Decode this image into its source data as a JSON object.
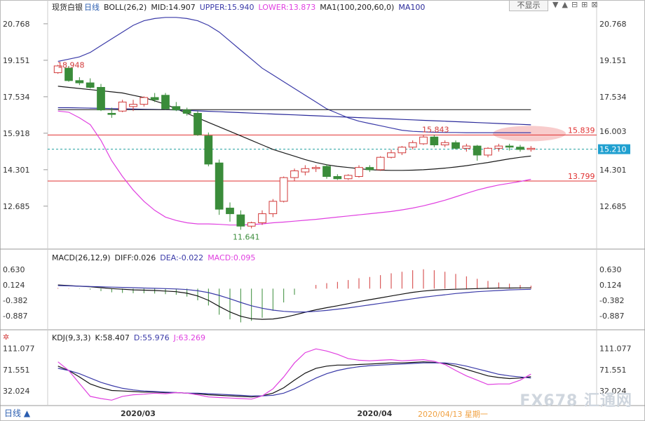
{
  "header": {
    "symbol": "现货白银",
    "period": "日线",
    "boll": "BOLL(26,2)",
    "mid": "MID:14.907",
    "upper": "UPPER:15.940",
    "lower": "LOWER:13.873",
    "ma": "MA1(100,200,60,0)",
    "ma100": "MA100"
  },
  "toolbar": {
    "hide": "不显示",
    "arrows": [
      "▼",
      "▲",
      "⊟",
      "⊞",
      "⊠"
    ]
  },
  "macd_header": {
    "title": "MACD(26,12,9)",
    "diff": "DIFF:0.026",
    "dea": "DEA:-0.022",
    "macd": "MACD:0.095"
  },
  "kdj_header": {
    "title": "KDJ(9,3,3)",
    "k": "K:58.407",
    "d": "D:55.976",
    "j": "J:63.269"
  },
  "footer": {
    "period_tab": "日线 ▲",
    "date_hover": "2020/04/13 星期一"
  },
  "watermark": "FX678 汇通网",
  "colors": {
    "up": "#d23a3a",
    "down": "#3a8c3a",
    "upper": "#3a3aa8",
    "lower": "#e040e0",
    "mid": "#1a1a1a",
    "ma100": "#2a2a9a",
    "ma200": "#2a2a2a",
    "hline": "#e03030",
    "dashed": "#20a0a0",
    "macd_diff": "#111111",
    "macd_dea": "#3a3aa8",
    "k": "#111111",
    "d": "#3a3aa8",
    "j": "#e040e0"
  },
  "chart_data": [
    {
      "type": "candlestick",
      "title": "现货白银 日线",
      "y_ticks_left": [
        "20.768",
        "19.151",
        "17.534",
        "15.918",
        "14.301",
        "12.685"
      ],
      "y_ticks_right": [
        "20.768",
        "19.151",
        "17.534",
        "16.003",
        "15.210",
        "14.301",
        "12.685"
      ],
      "ylim": [
        11.0,
        21.2
      ],
      "x_labels": [
        "2020/03",
        "2020/04"
      ],
      "annotations": [
        "18.948",
        "11.641",
        "15.843",
        "15.839",
        "13.799"
      ],
      "hlines": [
        15.839,
        13.799
      ],
      "current_price": 15.21,
      "candles": [
        [
          18.6,
          18.95,
          18.55,
          18.9
        ],
        [
          18.8,
          18.9,
          18.2,
          18.25
        ],
        [
          18.25,
          18.4,
          18.05,
          18.15
        ],
        [
          18.15,
          18.35,
          17.9,
          17.95
        ],
        [
          17.95,
          18.1,
          16.9,
          16.95
        ],
        [
          16.8,
          17.05,
          16.6,
          16.75
        ],
        [
          16.9,
          17.4,
          16.85,
          17.3
        ],
        [
          17.1,
          17.4,
          16.9,
          17.2
        ],
        [
          17.2,
          17.55,
          17.1,
          17.5
        ],
        [
          17.5,
          17.7,
          17.3,
          17.4
        ],
        [
          17.6,
          17.7,
          16.95,
          17.0
        ],
        [
          17.1,
          17.3,
          16.9,
          16.95
        ],
        [
          16.95,
          17.05,
          16.7,
          16.8
        ],
        [
          16.8,
          16.9,
          15.8,
          15.85
        ],
        [
          15.8,
          15.95,
          14.45,
          14.55
        ],
        [
          14.6,
          14.75,
          12.3,
          12.55
        ],
        [
          12.6,
          12.85,
          12.0,
          12.35
        ],
        [
          12.3,
          12.5,
          11.64,
          11.8
        ],
        [
          11.8,
          12.0,
          11.7,
          11.95
        ],
        [
          11.95,
          12.5,
          11.85,
          12.35
        ],
        [
          12.35,
          13.0,
          12.2,
          12.9
        ],
        [
          12.9,
          14.0,
          12.85,
          13.95
        ],
        [
          13.95,
          14.35,
          13.8,
          14.25
        ],
        [
          14.2,
          14.5,
          14.05,
          14.35
        ],
        [
          14.35,
          14.5,
          14.2,
          14.4
        ],
        [
          14.45,
          14.55,
          13.9,
          14.0
        ],
        [
          14.0,
          14.1,
          13.85,
          13.9
        ],
        [
          13.9,
          14.1,
          13.85,
          14.05
        ],
        [
          14.0,
          14.5,
          13.95,
          14.4
        ],
        [
          14.4,
          14.5,
          14.2,
          14.3
        ],
        [
          14.3,
          14.9,
          14.25,
          14.85
        ],
        [
          14.85,
          15.2,
          14.8,
          15.05
        ],
        [
          15.05,
          15.35,
          14.95,
          15.3
        ],
        [
          15.3,
          15.6,
          15.2,
          15.5
        ],
        [
          15.45,
          15.85,
          15.4,
          15.75
        ],
        [
          15.75,
          15.84,
          15.3,
          15.4
        ],
        [
          15.4,
          15.6,
          15.3,
          15.5
        ],
        [
          15.5,
          15.6,
          15.2,
          15.25
        ],
        [
          15.25,
          15.45,
          15.1,
          15.35
        ],
        [
          15.35,
          15.4,
          14.7,
          14.95
        ],
        [
          14.95,
          15.3,
          14.85,
          15.25
        ],
        [
          15.25,
          15.45,
          15.1,
          15.35
        ],
        [
          15.35,
          15.45,
          15.15,
          15.3
        ],
        [
          15.3,
          15.4,
          15.1,
          15.2
        ],
        [
          15.2,
          15.35,
          15.1,
          15.25
        ]
      ],
      "series": [
        {
          "name": "UPPER",
          "values": [
            19.1,
            19.2,
            19.3,
            19.5,
            19.8,
            20.1,
            20.4,
            20.7,
            20.9,
            21.0,
            21.05,
            21.05,
            21.0,
            20.9,
            20.7,
            20.4,
            20.0,
            19.6,
            19.2,
            18.8,
            18.5,
            18.2,
            17.9,
            17.6,
            17.3,
            17.0,
            16.8,
            16.6,
            16.45,
            16.35,
            16.25,
            16.15,
            16.05,
            16.0,
            15.98,
            15.96,
            15.95,
            15.95,
            15.94,
            15.94,
            15.94,
            15.94,
            15.94,
            15.94,
            15.94
          ]
        },
        {
          "name": "MID",
          "values": [
            18.0,
            17.95,
            17.9,
            17.85,
            17.8,
            17.75,
            17.7,
            17.6,
            17.5,
            17.35,
            17.2,
            17.0,
            16.8,
            16.6,
            16.4,
            16.2,
            16.0,
            15.8,
            15.6,
            15.4,
            15.2,
            15.05,
            14.9,
            14.75,
            14.62,
            14.52,
            14.45,
            14.4,
            14.35,
            14.3,
            14.28,
            14.27,
            14.27,
            14.28,
            14.3,
            14.33,
            14.37,
            14.42,
            14.48,
            14.55,
            14.62,
            14.7,
            14.78,
            14.85,
            14.907
          ]
        },
        {
          "name": "LOWER",
          "values": [
            16.9,
            16.85,
            16.6,
            16.3,
            15.6,
            14.7,
            14.0,
            13.4,
            12.9,
            12.5,
            12.2,
            12.05,
            11.95,
            11.9,
            11.9,
            11.88,
            11.85,
            11.85,
            11.87,
            11.9,
            11.95,
            11.98,
            12.02,
            12.06,
            12.1,
            12.15,
            12.2,
            12.25,
            12.3,
            12.35,
            12.4,
            12.45,
            12.52,
            12.6,
            12.7,
            12.82,
            12.95,
            13.1,
            13.25,
            13.4,
            13.52,
            13.62,
            13.7,
            13.78,
            13.873
          ]
        },
        {
          "name": "MA100",
          "values": [
            17.05,
            17.05,
            17.04,
            17.03,
            17.02,
            17.01,
            17.0,
            16.99,
            16.98,
            16.97,
            16.96,
            16.95,
            16.93,
            16.91,
            16.89,
            16.87,
            16.85,
            16.83,
            16.81,
            16.79,
            16.77,
            16.75,
            16.73,
            16.71,
            16.69,
            16.67,
            16.65,
            16.63,
            16.61,
            16.59,
            16.57,
            16.55,
            16.53,
            16.51,
            16.49,
            16.47,
            16.45,
            16.43,
            16.41,
            16.39,
            16.37,
            16.35,
            16.33,
            16.31,
            16.29
          ]
        },
        {
          "name": "MA200",
          "values": [
            16.96,
            16.96,
            16.96,
            16.96,
            16.96,
            16.96,
            16.96,
            16.96,
            16.96,
            16.96,
            16.96,
            16.96,
            16.96,
            16.96,
            16.96,
            16.96,
            16.96,
            16.96,
            16.96,
            16.96,
            16.96,
            16.96,
            16.96,
            16.96,
            16.96,
            16.96,
            16.96,
            16.96,
            16.96,
            16.96,
            16.96,
            16.96,
            16.96,
            16.96,
            16.96,
            16.96,
            16.96,
            16.96,
            16.96,
            16.96,
            16.96,
            16.96,
            16.96,
            16.96,
            16.96
          ]
        }
      ]
    },
    {
      "type": "bar",
      "title": "MACD(26,12,9)",
      "y_ticks": [
        "0.630",
        "0.124",
        "-0.382",
        "-0.887"
      ],
      "ylim": [
        -1.25,
        0.9
      ],
      "series": [
        {
          "name": "MACD",
          "values": [
            0.02,
            0.01,
            -0.01,
            -0.03,
            -0.08,
            -0.12,
            -0.14,
            -0.15,
            -0.15,
            -0.16,
            -0.18,
            -0.2,
            -0.26,
            -0.38,
            -0.55,
            -0.85,
            -1.0,
            -1.1,
            -1.05,
            -0.95,
            -0.72,
            -0.45,
            -0.2,
            0.0,
            0.12,
            0.18,
            0.22,
            0.28,
            0.34,
            0.38,
            0.44,
            0.5,
            0.55,
            0.6,
            0.63,
            0.6,
            0.55,
            0.48,
            0.4,
            0.32,
            0.25,
            0.2,
            0.16,
            0.12,
            0.095
          ]
        },
        {
          "name": "DIFF",
          "values": [
            0.12,
            0.1,
            0.08,
            0.06,
            0.03,
            0.0,
            -0.02,
            -0.04,
            -0.05,
            -0.06,
            -0.08,
            -0.1,
            -0.15,
            -0.24,
            -0.38,
            -0.58,
            -0.76,
            -0.9,
            -0.98,
            -1.0,
            -0.99,
            -0.94,
            -0.86,
            -0.77,
            -0.69,
            -0.62,
            -0.56,
            -0.49,
            -0.42,
            -0.36,
            -0.3,
            -0.24,
            -0.18,
            -0.12,
            -0.08,
            -0.05,
            -0.03,
            -0.02,
            -0.01,
            0.0,
            0.01,
            0.02,
            0.02,
            0.025,
            0.026
          ]
        },
        {
          "name": "DEA",
          "values": [
            0.1,
            0.09,
            0.08,
            0.07,
            0.06,
            0.05,
            0.04,
            0.03,
            0.02,
            0.01,
            0.0,
            -0.01,
            -0.03,
            -0.07,
            -0.13,
            -0.22,
            -0.33,
            -0.45,
            -0.56,
            -0.64,
            -0.7,
            -0.74,
            -0.76,
            -0.76,
            -0.74,
            -0.71,
            -0.67,
            -0.63,
            -0.58,
            -0.53,
            -0.48,
            -0.43,
            -0.38,
            -0.33,
            -0.28,
            -0.24,
            -0.2,
            -0.16,
            -0.13,
            -0.1,
            -0.08,
            -0.06,
            -0.04,
            -0.03,
            -0.022
          ]
        }
      ]
    },
    {
      "type": "line",
      "title": "KDJ(9,3,3)",
      "y_ticks": [
        "111.077",
        "71.551",
        "32.024"
      ],
      "ylim": [
        5,
        122
      ],
      "series": [
        {
          "name": "K",
          "values": [
            78,
            70,
            58,
            45,
            38,
            33,
            32,
            31,
            30,
            30,
            29,
            29,
            28,
            27,
            25,
            24,
            23,
            22,
            21,
            23,
            28,
            38,
            52,
            65,
            74,
            78,
            80,
            80,
            81,
            82,
            83,
            84,
            84,
            85,
            86,
            85,
            83,
            78,
            72,
            66,
            60,
            57,
            55,
            56,
            58.407
          ]
        },
        {
          "name": "D",
          "values": [
            74,
            70,
            64,
            56,
            48,
            42,
            37,
            34,
            32,
            31,
            30,
            29,
            28,
            28,
            27,
            26,
            25,
            24,
            23,
            23,
            24,
            28,
            36,
            46,
            56,
            64,
            70,
            74,
            77,
            79,
            80,
            81,
            82,
            83,
            84,
            84,
            84,
            82,
            78,
            73,
            68,
            63,
            60,
            58,
            55.976
          ]
        },
        {
          "name": "J",
          "values": [
            86,
            70,
            46,
            22,
            18,
            15,
            22,
            25,
            26,
            28,
            27,
            29,
            28,
            25,
            21,
            20,
            19,
            18,
            17,
            23,
            36,
            58,
            84,
            103,
            110,
            106,
            100,
            92,
            89,
            88,
            89,
            90,
            88,
            89,
            90,
            87,
            81,
            70,
            60,
            52,
            44,
            45,
            45,
            52,
            63.269
          ]
        }
      ]
    }
  ]
}
